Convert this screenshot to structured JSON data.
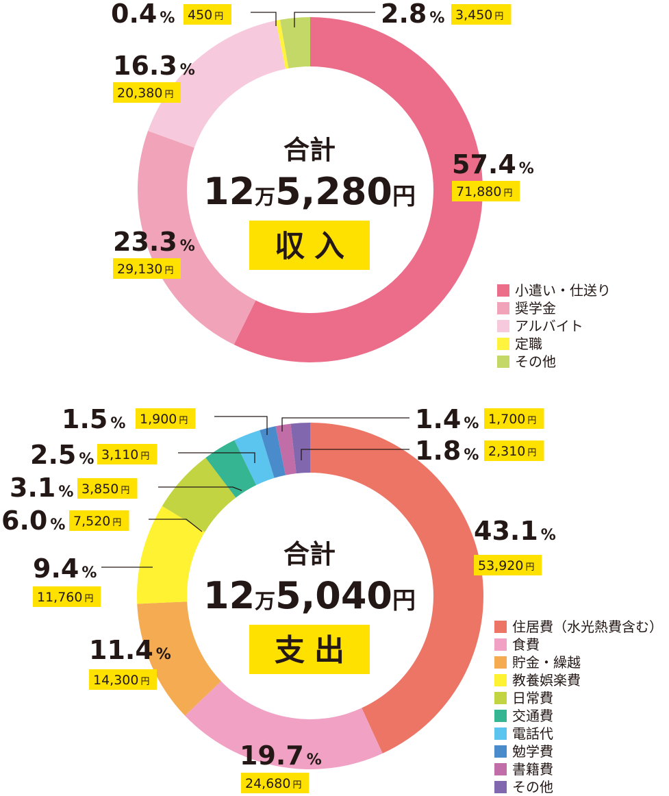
{
  "accent_label_bg": "#ffe100",
  "chart_data": [
    {
      "type": "pie",
      "subtype": "donut",
      "center": {
        "title": "合計",
        "total_prefix": "12",
        "total_man": "万",
        "total_suffix": "5,280",
        "total_yen": "円",
        "tag": "収入"
      },
      "slices": [
        {
          "name": "小遣い・仕送り",
          "percent": 57.4,
          "amount": "71,880",
          "color": "#ec6d8a"
        },
        {
          "name": "奨学金",
          "percent": 23.3,
          "amount": "29,130",
          "color": "#f0a3b9"
        },
        {
          "name": "アルバイト",
          "percent": 16.3,
          "amount": "20,380",
          "color": "#f7c9dd"
        },
        {
          "name": "定職",
          "percent": 0.4,
          "amount": "450",
          "color": "#fff33f"
        },
        {
          "name": "その他",
          "percent": 2.8,
          "amount": "3,450",
          "color": "#c3d867"
        }
      ],
      "legend_position": "bottom-right"
    },
    {
      "type": "pie",
      "subtype": "donut",
      "center": {
        "title": "合計",
        "total_prefix": "12",
        "total_man": "万",
        "total_suffix": "5,040",
        "total_yen": "円",
        "tag": "支出"
      },
      "slices": [
        {
          "name": "住居費（水光熱費含む）",
          "percent": 43.1,
          "amount": "53,920",
          "color": "#ec7566"
        },
        {
          "name": "食費",
          "percent": 19.7,
          "amount": "24,680",
          "color": "#f1a2c4"
        },
        {
          "name": "貯金・繰越",
          "percent": 11.4,
          "amount": "14,300",
          "color": "#f4ab52"
        },
        {
          "name": "教養娯楽費",
          "percent": 9.4,
          "amount": "11,760",
          "color": "#fff233"
        },
        {
          "name": "日常費",
          "percent": 6.0,
          "amount": "7,520",
          "color": "#c3d442"
        },
        {
          "name": "交通費",
          "percent": 3.1,
          "amount": "3,850",
          "color": "#35b592"
        },
        {
          "name": "電話代",
          "percent": 2.5,
          "amount": "3,110",
          "color": "#5bc4ef"
        },
        {
          "name": "勉学費",
          "percent": 1.5,
          "amount": "1,900",
          "color": "#4a8ccb"
        },
        {
          "name": "書籍費",
          "percent": 1.4,
          "amount": "1,700",
          "color": "#c06da8"
        },
        {
          "name": "その他",
          "percent": 1.8,
          "amount": "2,310",
          "color": "#8168ae"
        }
      ],
      "legend_position": "bottom-right"
    }
  ]
}
